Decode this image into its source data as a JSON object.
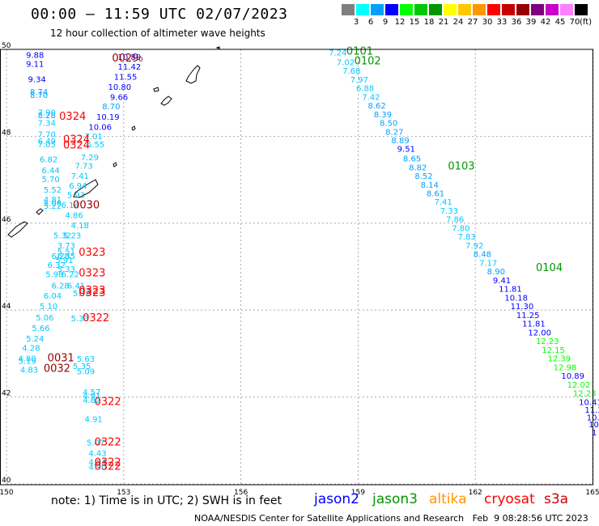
{
  "title": "00:00 – 11:59 UTC 02/07/2023",
  "subtitle": "12 hour collection of altimeter wave heights",
  "colorbar": {
    "unit": "(ft)",
    "bins": [
      {
        "label": "3",
        "color": "#7f7f7f"
      },
      {
        "label": "6",
        "color": "#00ffff"
      },
      {
        "label": "9",
        "color": "#00a0ff"
      },
      {
        "label": "12",
        "color": "#0000ff"
      },
      {
        "label": "15",
        "color": "#00ff00"
      },
      {
        "label": "18",
        "color": "#00c800"
      },
      {
        "label": "21",
        "color": "#009600"
      },
      {
        "label": "24",
        "color": "#ffff00"
      },
      {
        "label": "27",
        "color": "#ffc800"
      },
      {
        "label": "30",
        "color": "#ff9600"
      },
      {
        "label": "33",
        "color": "#ff0000"
      },
      {
        "label": "36",
        "color": "#c80000"
      },
      {
        "label": "39",
        "color": "#960000"
      },
      {
        "label": "42",
        "color": "#800080"
      },
      {
        "label": "45",
        "color": "#c800c8"
      },
      {
        "label": "70",
        "color": "#ff80ff"
      },
      {
        "label": "",
        "color": "#000000"
      }
    ]
  },
  "axes": {
    "x_ticks": [
      "150",
      "153",
      "156",
      "159",
      "162",
      "165"
    ],
    "y_ticks": [
      "50",
      "48",
      "46",
      "44",
      "42",
      "40"
    ]
  },
  "note": "note:  1) Time is in UTC;  2) SWH is in feet",
  "credit": "NOAA/NESDIS Center for Satellite Applications and Research   Feb  9 08:28:56 UTC 2023",
  "legend": [
    {
      "label": "jason2",
      "color": "#0000ff"
    },
    {
      "label": "jason3",
      "color": "#009600"
    },
    {
      "label": "altika",
      "color": "#ff9600"
    },
    {
      "label": "cryosat",
      "color": "#ff0000"
    },
    {
      "label": "s3a",
      "color": "#c80000"
    }
  ],
  "map": {
    "lon_range": [
      150,
      165
    ],
    "lat_range": [
      40,
      50
    ],
    "track_labels": [
      {
        "text": "9.88",
        "lon": 150.5,
        "lat": 49.8,
        "color": "#0000ff"
      },
      {
        "text": "9.11",
        "lon": 150.5,
        "lat": 49.6,
        "color": "#0000ff"
      },
      {
        "text": "9.34",
        "lon": 150.55,
        "lat": 49.25,
        "color": "#0000ff"
      },
      {
        "text": "8.74",
        "lon": 150.6,
        "lat": 48.96,
        "color": "#00a0ff"
      },
      {
        "text": "8.70",
        "lon": 150.6,
        "lat": 48.88,
        "color": "#00a0ff"
      },
      {
        "text": "7.90",
        "lon": 150.8,
        "lat": 48.48,
        "color": "#00c8ff"
      },
      {
        "text": "8.28",
        "lon": 150.8,
        "lat": 48.42,
        "color": "#00a0ff"
      },
      {
        "text": "7.34",
        "lon": 150.8,
        "lat": 48.24,
        "color": "#00c8ff"
      },
      {
        "text": "7.70",
        "lon": 150.8,
        "lat": 47.98,
        "color": "#00c8ff"
      },
      {
        "text": "6.49",
        "lon": 150.8,
        "lat": 47.82,
        "color": "#00c8ff"
      },
      {
        "text": "7.05",
        "lon": 150.8,
        "lat": 47.75,
        "color": "#00c8ff"
      },
      {
        "text": "6.82",
        "lon": 150.85,
        "lat": 47.4,
        "color": "#00c8ff"
      },
      {
        "text": "6.44",
        "lon": 150.9,
        "lat": 47.15,
        "color": "#00c8ff"
      },
      {
        "text": "5.70",
        "lon": 150.9,
        "lat": 46.95,
        "color": "#00c8ff"
      },
      {
        "text": "5.52",
        "lon": 150.95,
        "lat": 46.7,
        "color": "#00c8ff"
      },
      {
        "text": "4.81",
        "lon": 150.95,
        "lat": 46.48,
        "color": "#00c8ff"
      },
      {
        "text": "5.06",
        "lon": 150.95,
        "lat": 46.4,
        "color": "#00c8ff"
      },
      {
        "text": "5.22",
        "lon": 150.95,
        "lat": 46.33,
        "color": "#00c8ff"
      },
      {
        "text": "6.14",
        "lon": 151.4,
        "lat": 46.35,
        "color": "#00c8ff"
      },
      {
        "text": "4.86",
        "lon": 151.5,
        "lat": 46.12,
        "color": "#00c8ff"
      },
      {
        "text": "4.18",
        "lon": 151.65,
        "lat": 45.88,
        "color": "#00c8ff"
      },
      {
        "text": "5.32",
        "lon": 151.2,
        "lat": 45.65,
        "color": "#00c8ff"
      },
      {
        "text": "5.23",
        "lon": 151.45,
        "lat": 45.65,
        "color": "#00c8ff"
      },
      {
        "text": "3.73",
        "lon": 151.3,
        "lat": 45.42,
        "color": "#00c8ff"
      },
      {
        "text": "5.51",
        "lon": 151.3,
        "lat": 45.28,
        "color": "#00c8ff"
      },
      {
        "text": "6.28",
        "lon": 151.15,
        "lat": 45.18,
        "color": "#00c8ff"
      },
      {
        "text": "6.35",
        "lon": 151.3,
        "lat": 45.18,
        "color": "#00c8ff"
      },
      {
        "text": "5.91",
        "lon": 151.25,
        "lat": 45.08,
        "color": "#00c8ff"
      },
      {
        "text": "6.32",
        "lon": 151.05,
        "lat": 44.97,
        "color": "#00c8ff"
      },
      {
        "text": "5.33",
        "lon": 151.3,
        "lat": 44.88,
        "color": "#00c8ff"
      },
      {
        "text": "5.98",
        "lon": 151.0,
        "lat": 44.76,
        "color": "#00c8ff"
      },
      {
        "text": "6.22",
        "lon": 151.4,
        "lat": 44.76,
        "color": "#00c8ff"
      },
      {
        "text": "6.28",
        "lon": 151.15,
        "lat": 44.5,
        "color": "#00c8ff"
      },
      {
        "text": "6.41",
        "lon": 151.55,
        "lat": 44.5,
        "color": "#00c8ff"
      },
      {
        "text": "6.04",
        "lon": 150.95,
        "lat": 44.26,
        "color": "#00c8ff"
      },
      {
        "text": "5.70",
        "lon": 151.7,
        "lat": 44.32,
        "color": "#00c8ff"
      },
      {
        "text": "5.10",
        "lon": 150.85,
        "lat": 44.02,
        "color": "#00c8ff"
      },
      {
        "text": "5.06",
        "lon": 150.75,
        "lat": 43.76,
        "color": "#00c8ff"
      },
      {
        "text": "5.33",
        "lon": 151.65,
        "lat": 43.74,
        "color": "#00c8ff"
      },
      {
        "text": "5.66",
        "lon": 150.65,
        "lat": 43.52,
        "color": "#00c8ff"
      },
      {
        "text": "5.24",
        "lon": 150.5,
        "lat": 43.28,
        "color": "#00c8ff"
      },
      {
        "text": "4.28",
        "lon": 150.4,
        "lat": 43.06,
        "color": "#00c8ff"
      },
      {
        "text": "4.80",
        "lon": 150.3,
        "lat": 42.82,
        "color": "#00c8ff"
      },
      {
        "text": "5.19",
        "lon": 150.3,
        "lat": 42.77,
        "color": "#00c8ff"
      },
      {
        "text": "4.83",
        "lon": 150.35,
        "lat": 42.56,
        "color": "#00c8ff"
      },
      {
        "text": "5.63",
        "lon": 151.8,
        "lat": 42.81,
        "color": "#00c8ff"
      },
      {
        "text": "5.35",
        "lon": 151.7,
        "lat": 42.64,
        "color": "#00c8ff"
      },
      {
        "text": "5.09",
        "lon": 151.8,
        "lat": 42.52,
        "color": "#00c8ff"
      },
      {
        "text": "4.57",
        "lon": 151.95,
        "lat": 42.05,
        "color": "#00c8ff"
      },
      {
        "text": "4.91",
        "lon": 151.95,
        "lat": 41.96,
        "color": "#00c8ff"
      },
      {
        "text": "4.82",
        "lon": 151.95,
        "lat": 41.86,
        "color": "#00c8ff"
      },
      {
        "text": "4.91",
        "lon": 152.0,
        "lat": 41.42,
        "color": "#00c8ff"
      },
      {
        "text": "5.07",
        "lon": 152.05,
        "lat": 40.88,
        "color": "#00c8ff"
      },
      {
        "text": "4.43",
        "lon": 152.1,
        "lat": 40.64,
        "color": "#00c8ff"
      },
      {
        "text": "4.84",
        "lon": 152.1,
        "lat": 40.44,
        "color": "#00c8ff"
      },
      {
        "text": "4.90",
        "lon": 152.1,
        "lat": 40.33,
        "color": "#00c8ff"
      },
      {
        "text": "10.89",
        "lon": 152.85,
        "lat": 49.76,
        "color": "#0000ff"
      },
      {
        "text": "11.42",
        "lon": 152.85,
        "lat": 49.53,
        "color": "#0000ff"
      },
      {
        "text": "11.55",
        "lon": 152.75,
        "lat": 49.3,
        "color": "#0000ff"
      },
      {
        "text": "10.80",
        "lon": 152.6,
        "lat": 49.07,
        "color": "#0000ff"
      },
      {
        "text": "9.66",
        "lon": 152.65,
        "lat": 48.84,
        "color": "#0000ff"
      },
      {
        "text": "8.70",
        "lon": 152.45,
        "lat": 48.62,
        "color": "#00a0ff"
      },
      {
        "text": "10.19",
        "lon": 152.3,
        "lat": 48.38,
        "color": "#0000ff"
      },
      {
        "text": "10.06",
        "lon": 152.1,
        "lat": 48.15,
        "color": "#0000ff"
      },
      {
        "text": "7.01",
        "lon": 152.0,
        "lat": 47.93,
        "color": "#00c8ff"
      },
      {
        "text": "6.55",
        "lon": 152.05,
        "lat": 47.75,
        "color": "#00c8ff"
      },
      {
        "text": "7.29",
        "lon": 151.9,
        "lat": 47.45,
        "color": "#00c8ff"
      },
      {
        "text": "7.73",
        "lon": 151.75,
        "lat": 47.25,
        "color": "#00c8ff"
      },
      {
        "text": "7.41",
        "lon": 151.65,
        "lat": 47.02,
        "color": "#00c8ff"
      },
      {
        "text": "6.94",
        "lon": 151.6,
        "lat": 46.8,
        "color": "#00c8ff"
      },
      {
        "text": "5.93",
        "lon": 151.55,
        "lat": 46.58,
        "color": "#00c8ff"
      },
      {
        "text": "7.24",
        "lon": 158.25,
        "lat": 49.86,
        "color": "#00c8ff"
      },
      {
        "text": "7.02",
        "lon": 158.45,
        "lat": 49.64,
        "color": "#00c8ff"
      },
      {
        "text": "7.68",
        "lon": 158.6,
        "lat": 49.44,
        "color": "#00c8ff"
      },
      {
        "text": "7.97",
        "lon": 158.8,
        "lat": 49.24,
        "color": "#00c8ff"
      },
      {
        "text": "6.88",
        "lon": 158.95,
        "lat": 49.04,
        "color": "#00c8ff"
      },
      {
        "text": "7.42",
        "lon": 159.1,
        "lat": 48.84,
        "color": "#00c8ff"
      },
      {
        "text": "8.62",
        "lon": 159.25,
        "lat": 48.64,
        "color": "#00a0ff"
      },
      {
        "text": "8.39",
        "lon": 159.4,
        "lat": 48.44,
        "color": "#00a0ff"
      },
      {
        "text": "8.50",
        "lon": 159.55,
        "lat": 48.24,
        "color": "#00a0ff"
      },
      {
        "text": "8.27",
        "lon": 159.7,
        "lat": 48.04,
        "color": "#00a0ff"
      },
      {
        "text": "8.89",
        "lon": 159.85,
        "lat": 47.84,
        "color": "#00a0ff"
      },
      {
        "text": "9.51",
        "lon": 160.0,
        "lat": 47.64,
        "color": "#0000ff"
      },
      {
        "text": "8.65",
        "lon": 160.15,
        "lat": 47.42,
        "color": "#00a0ff"
      },
      {
        "text": "8.82",
        "lon": 160.3,
        "lat": 47.22,
        "color": "#00a0ff"
      },
      {
        "text": "8.52",
        "lon": 160.45,
        "lat": 47.02,
        "color": "#00a0ff"
      },
      {
        "text": "8.14",
        "lon": 160.6,
        "lat": 46.82,
        "color": "#00a0ff"
      },
      {
        "text": "8.61",
        "lon": 160.75,
        "lat": 46.62,
        "color": "#00a0ff"
      },
      {
        "text": "7.41",
        "lon": 160.95,
        "lat": 46.42,
        "color": "#00c8ff"
      },
      {
        "text": "7.33",
        "lon": 161.1,
        "lat": 46.22,
        "color": "#00c8ff"
      },
      {
        "text": "7.86",
        "lon": 161.25,
        "lat": 46.02,
        "color": "#00c8ff"
      },
      {
        "text": "7.80",
        "lon": 161.4,
        "lat": 45.82,
        "color": "#00c8ff"
      },
      {
        "text": "7.83",
        "lon": 161.55,
        "lat": 45.62,
        "color": "#00c8ff"
      },
      {
        "text": "7.92",
        "lon": 161.75,
        "lat": 45.42,
        "color": "#00c8ff"
      },
      {
        "text": "8.48",
        "lon": 161.95,
        "lat": 45.22,
        "color": "#00a0ff"
      },
      {
        "text": "7.17",
        "lon": 162.1,
        "lat": 45.02,
        "color": "#00c8ff"
      },
      {
        "text": "8.90",
        "lon": 162.3,
        "lat": 44.82,
        "color": "#00a0ff"
      },
      {
        "text": "9.41",
        "lon": 162.45,
        "lat": 44.62,
        "color": "#0000ff"
      },
      {
        "text": "11.81",
        "lon": 162.6,
        "lat": 44.42,
        "color": "#0000ff"
      },
      {
        "text": "10.18",
        "lon": 162.75,
        "lat": 44.22,
        "color": "#0000ff"
      },
      {
        "text": "11.30",
        "lon": 162.9,
        "lat": 44.02,
        "color": "#0000ff"
      },
      {
        "text": "11.25",
        "lon": 163.05,
        "lat": 43.82,
        "color": "#0000ff"
      },
      {
        "text": "11.81",
        "lon": 163.2,
        "lat": 43.62,
        "color": "#0000ff"
      },
      {
        "text": "12.00",
        "lon": 163.35,
        "lat": 43.42,
        "color": "#0000ff"
      },
      {
        "text": "12.23",
        "lon": 163.55,
        "lat": 43.22,
        "color": "#00ff00"
      },
      {
        "text": "12.15",
        "lon": 163.7,
        "lat": 43.02,
        "color": "#00ff00"
      },
      {
        "text": "12.39",
        "lon": 163.85,
        "lat": 42.82,
        "color": "#00ff00"
      },
      {
        "text": "12.98",
        "lon": 164.0,
        "lat": 42.62,
        "color": "#00ff00"
      },
      {
        "text": "10.89",
        "lon": 164.2,
        "lat": 42.42,
        "color": "#0000ff"
      },
      {
        "text": "12.02",
        "lon": 164.35,
        "lat": 42.22,
        "color": "#00ff00"
      },
      {
        "text": "12.23",
        "lon": 164.5,
        "lat": 42.02,
        "color": "#00ff00"
      },
      {
        "text": "10.41",
        "lon": 164.65,
        "lat": 41.82,
        "color": "#0000ff"
      },
      {
        "text": "11.33",
        "lon": 164.8,
        "lat": 41.64,
        "color": "#0000ff"
      },
      {
        "text": "10.1",
        "lon": 164.85,
        "lat": 41.46,
        "color": "#0000ff"
      },
      {
        "text": "10",
        "lon": 164.9,
        "lat": 41.3,
        "color": "#0000ff"
      },
      {
        "text": "1",
        "lon": 164.98,
        "lat": 41.12,
        "color": "#0000ff"
      }
    ],
    "time_labels": [
      {
        "text": "0029",
        "lon": 152.7,
        "lat": 49.72,
        "color": "#960000",
        "suffix": "0"
      },
      {
        "text": "0324",
        "lon": 151.35,
        "lat": 48.38,
        "color": "#ff0000"
      },
      {
        "text": "0324",
        "lon": 151.45,
        "lat": 47.85,
        "color": "#ff0000"
      },
      {
        "text": "0324",
        "lon": 151.45,
        "lat": 47.72,
        "color": "#ff0000"
      },
      {
        "text": "0030",
        "lon": 151.7,
        "lat": 46.34,
        "color": "#960000"
      },
      {
        "text": "0323",
        "lon": 151.85,
        "lat": 45.25,
        "color": "#ff0000"
      },
      {
        "text": "0323",
        "lon": 151.85,
        "lat": 44.78,
        "color": "#ff0000"
      },
      {
        "text": "0323",
        "lon": 151.85,
        "lat": 44.38,
        "color": "#ff0000"
      },
      {
        "text": "0323",
        "lon": 151.85,
        "lat": 44.32,
        "color": "#ff0000"
      },
      {
        "text": "0322",
        "lon": 151.95,
        "lat": 43.74,
        "color": "#ff0000"
      },
      {
        "text": "0031",
        "lon": 151.05,
        "lat": 42.82,
        "color": "#960000"
      },
      {
        "text": "0032",
        "lon": 150.95,
        "lat": 42.58,
        "color": "#960000"
      },
      {
        "text": "0322",
        "lon": 152.25,
        "lat": 41.82,
        "color": "#ff0000"
      },
      {
        "text": "0322",
        "lon": 152.25,
        "lat": 40.88,
        "color": "#ff0000"
      },
      {
        "text": "0322",
        "lon": 152.25,
        "lat": 40.42,
        "color": "#ff0000"
      },
      {
        "text": "0322",
        "lon": 152.25,
        "lat": 40.33,
        "color": "#ff0000"
      },
      {
        "text": "0101",
        "lon": 158.7,
        "lat": 49.88,
        "color": "#009600"
      },
      {
        "text": "0102",
        "lon": 158.9,
        "lat": 49.66,
        "color": "#009600"
      },
      {
        "text": "0103",
        "lon": 161.3,
        "lat": 47.23,
        "color": "#009600"
      },
      {
        "text": "0104",
        "lon": 163.55,
        "lat": 44.9,
        "color": "#009600"
      }
    ]
  }
}
